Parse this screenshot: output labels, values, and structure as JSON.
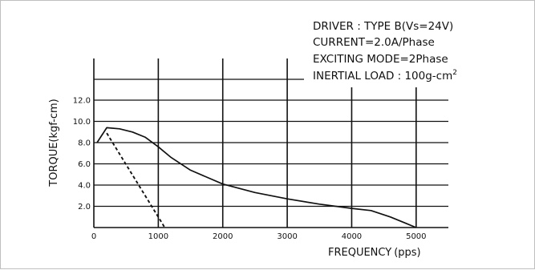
{
  "chart_data": {
    "type": "line",
    "title": "",
    "xlabel": "FREQUENCY",
    "xlabel_unit": "(pps)",
    "ylabel": "TORQUE(kgf-cm)",
    "xlim": [
      0,
      5500
    ],
    "ylim": [
      0,
      12
    ],
    "x_ticks": [
      0,
      1000,
      2000,
      3000,
      4000,
      5000
    ],
    "x_tick_labels": [
      "0",
      "1000",
      "2000",
      "3000",
      "4000",
      "5000"
    ],
    "y_ticks": [
      2,
      4,
      6,
      8,
      10,
      12
    ],
    "y_tick_labels": [
      "2.0",
      "4.0",
      "6.0",
      "8.0",
      "10.0",
      "12.0"
    ],
    "grid": true,
    "annotations": [
      "DRIVER : TYPE B(Vs=24V)",
      "CURRENT=2.0A/Phase",
      "EXCITING MODE=2Phase",
      "INERTIAL LOAD : 100g-cm"
    ],
    "annotation_superscript": "2",
    "series": [
      {
        "style": "solid",
        "x": [
          50,
          200,
          400,
          600,
          800,
          1000,
          1200,
          1500,
          2000,
          2500,
          3000,
          3500,
          4000,
          4300,
          4600,
          5000
        ],
        "y": [
          8.0,
          9.4,
          9.3,
          9.0,
          8.5,
          7.6,
          6.6,
          5.4,
          4.1,
          3.3,
          2.7,
          2.2,
          1.8,
          1.6,
          1.0,
          0.0
        ]
      },
      {
        "style": "dashed",
        "x": [
          200,
          1100
        ],
        "y": [
          8.9,
          0.0
        ]
      }
    ],
    "colors": {
      "line": "#111111",
      "grid": "#111111"
    }
  }
}
